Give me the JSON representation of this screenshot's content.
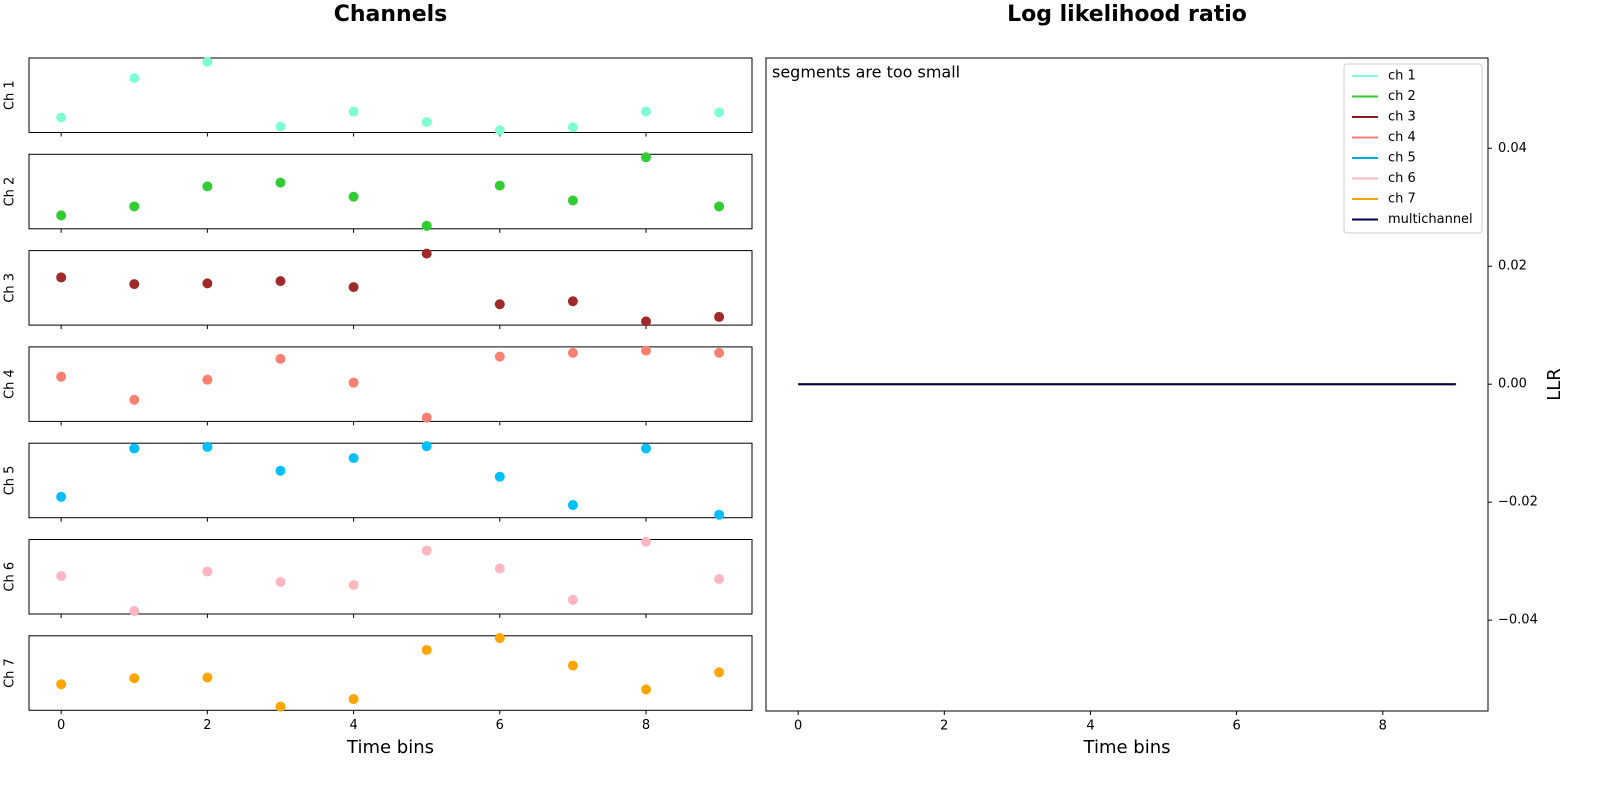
{
  "chart_data": [
    {
      "type": "scatter",
      "title": "Channels",
      "xlabel": "Time bins",
      "x": [
        0,
        1,
        2,
        3,
        4,
        5,
        6,
        7,
        8,
        9
      ],
      "xlim": [
        -0.44,
        9.45
      ],
      "xticks": [
        0,
        2,
        4,
        6,
        8
      ],
      "ylim": [
        0,
        1
      ],
      "series": [
        {
          "name": "Ch 1",
          "color": "#7fffd4",
          "values": [
            0.2,
            0.73,
            0.95,
            0.08,
            0.28,
            0.14,
            0.03,
            0.07,
            0.28,
            0.27
          ]
        },
        {
          "name": "Ch 2",
          "color": "#32cd32",
          "values": [
            0.18,
            0.3,
            0.57,
            0.62,
            0.43,
            0.04,
            0.58,
            0.38,
            0.96,
            0.3
          ]
        },
        {
          "name": "Ch 3",
          "color": "#a02a2a",
          "values": [
            0.64,
            0.55,
            0.56,
            0.59,
            0.51,
            0.96,
            0.28,
            0.32,
            0.05,
            0.11
          ]
        },
        {
          "name": "Ch 4",
          "color": "#fa8072",
          "values": [
            0.6,
            0.29,
            0.56,
            0.84,
            0.52,
            0.05,
            0.87,
            0.92,
            0.95,
            0.92
          ]
        },
        {
          "name": "Ch 5",
          "color": "#00bfff",
          "values": [
            0.28,
            0.93,
            0.95,
            0.63,
            0.8,
            0.96,
            0.55,
            0.17,
            0.93,
            0.04
          ]
        },
        {
          "name": "Ch 6",
          "color": "#ffb6c1",
          "values": [
            0.51,
            0.04,
            0.57,
            0.43,
            0.39,
            0.85,
            0.61,
            0.19,
            0.97,
            0.47
          ]
        },
        {
          "name": "Ch 7",
          "color": "#ffa500",
          "values": [
            0.35,
            0.43,
            0.44,
            0.05,
            0.15,
            0.81,
            0.97,
            0.6,
            0.28,
            0.51
          ]
        }
      ]
    },
    {
      "type": "line",
      "title": "Log likelihood ratio",
      "xlabel": "Time bins",
      "ylabel": "LLR",
      "annotation": "segments are too small",
      "annotation_color": "#dd1111",
      "legend": "upper right",
      "x": [
        0,
        1,
        2,
        3,
        4,
        5,
        6,
        7,
        8,
        9
      ],
      "xlim": [
        -0.44,
        9.44
      ],
      "xticks": [
        0,
        2,
        4,
        6,
        8
      ],
      "ylim": [
        -0.0554,
        0.0553
      ],
      "yticks": [
        {
          "value": -0.04,
          "label": "−0.04"
        },
        {
          "value": -0.02,
          "label": "−0.02"
        },
        {
          "value": 0,
          "label": "0.00"
        },
        0.02,
        0.04
      ],
      "series": [
        {
          "name": "ch 1",
          "color": "#7fffd4",
          "values": [
            0,
            0,
            0,
            0,
            0,
            0,
            0,
            0,
            0,
            0
          ]
        },
        {
          "name": "ch 2",
          "color": "#32cd32",
          "values": [
            0,
            0,
            0,
            0,
            0,
            0,
            0,
            0,
            0,
            0
          ]
        },
        {
          "name": "ch 3",
          "color": "#8b1a1a",
          "values": [
            0,
            0,
            0,
            0,
            0,
            0,
            0,
            0,
            0,
            0
          ]
        },
        {
          "name": "ch 4",
          "color": "#fa8072",
          "values": [
            0,
            0,
            0,
            0,
            0,
            0,
            0,
            0,
            0,
            0
          ]
        },
        {
          "name": "ch 5",
          "color": "#00aedb",
          "values": [
            0,
            0,
            0,
            0,
            0,
            0,
            0,
            0,
            0,
            0
          ]
        },
        {
          "name": "ch 6",
          "color": "#ffb6c1",
          "values": [
            0,
            0,
            0,
            0,
            0,
            0,
            0,
            0,
            0,
            0
          ]
        },
        {
          "name": "ch 7",
          "color": "#f0a500",
          "values": [
            0,
            0,
            0,
            0,
            0,
            0,
            0,
            0,
            0,
            0
          ]
        },
        {
          "name": "multichannel",
          "color": "#000050",
          "values": [
            0,
            0,
            0,
            0,
            0,
            0,
            0,
            0,
            0,
            0
          ]
        }
      ]
    }
  ]
}
